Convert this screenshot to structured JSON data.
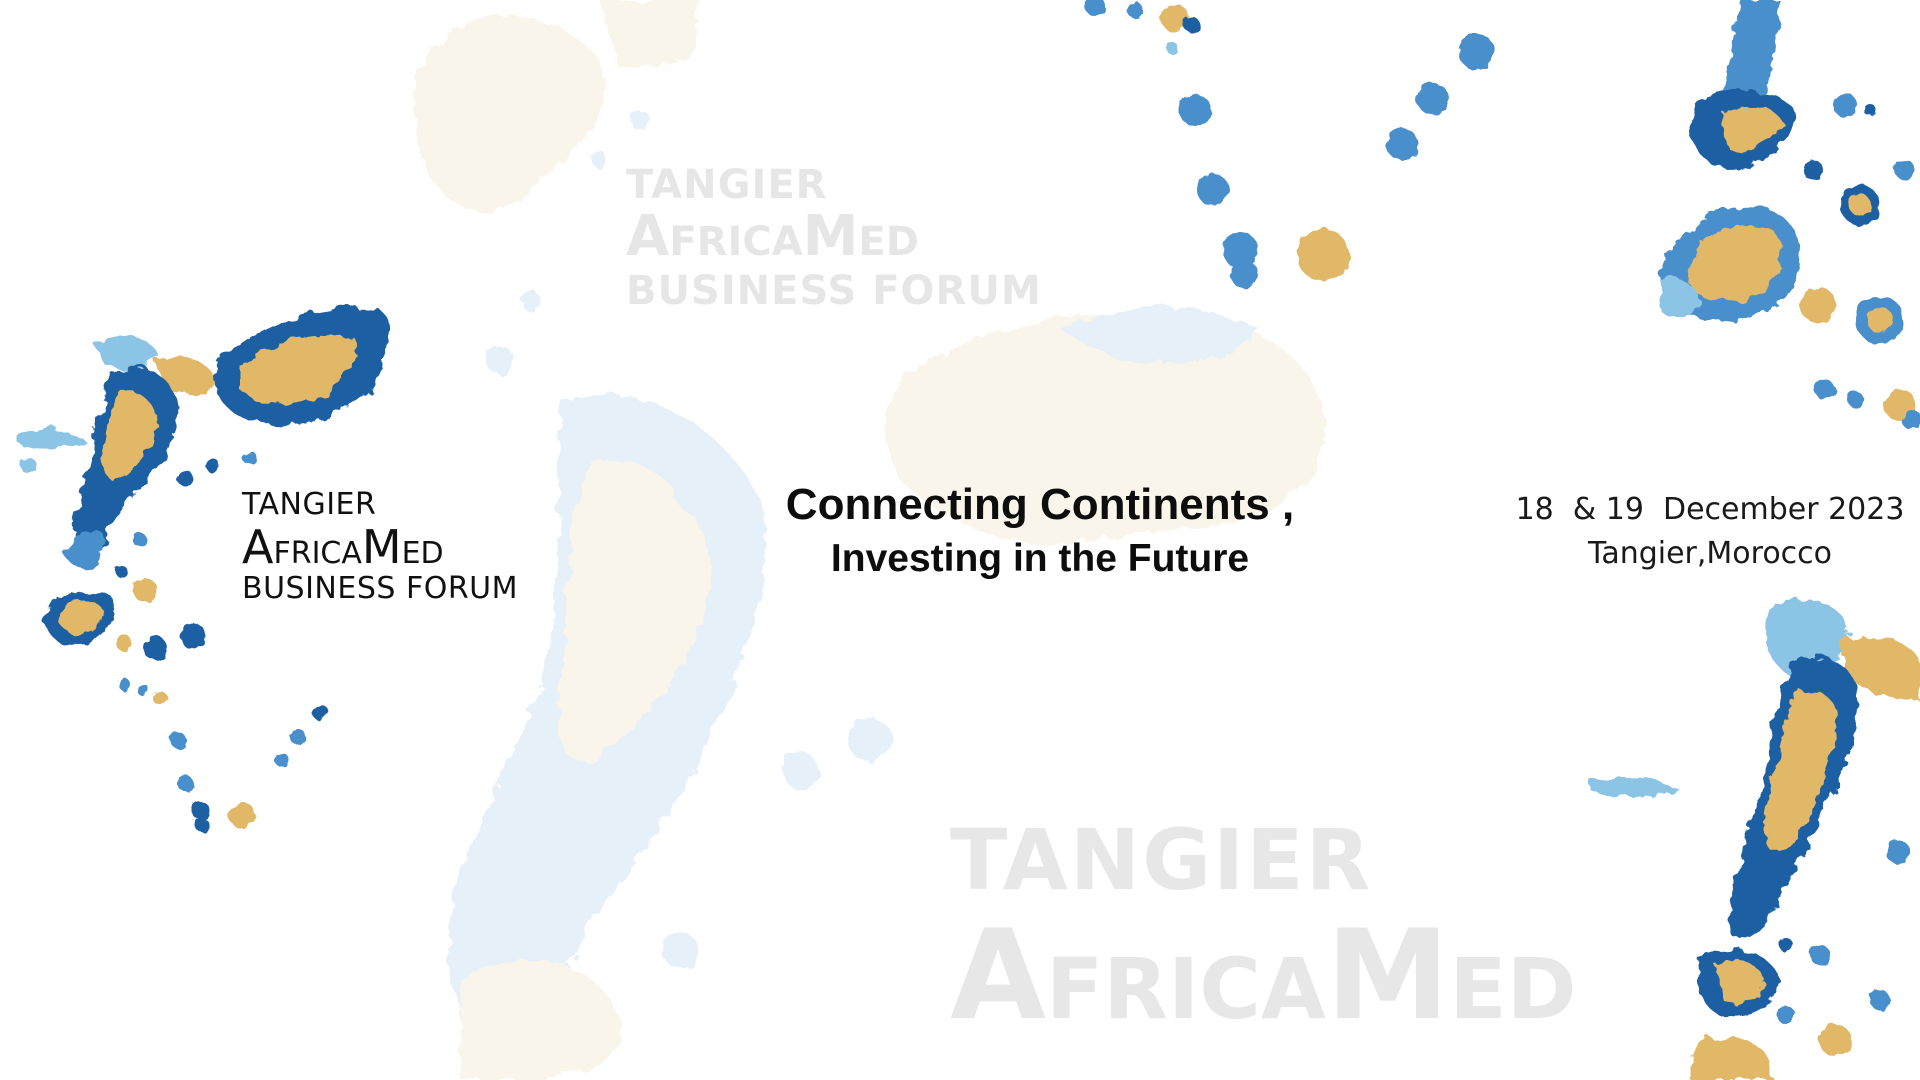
{
  "logo": {
    "line1": "TANGIER",
    "line2_cap1": "A",
    "line2_small1": "FRICA",
    "line2_cap2": "M",
    "line2_small2": "ED",
    "line3": "BUSINESS FORUM"
  },
  "watermark_top": {
    "line1": "TANGIER",
    "line2_cap1": "A",
    "line2_small1": "FRICA",
    "line2_cap2": "M",
    "line2_small2": "ED",
    "line3": "BUSINESS FORUM"
  },
  "watermark_bottom": {
    "line1": "TANGIER",
    "line2_cap1": "A",
    "line2_small1": "FRICA",
    "line2_cap2": "M",
    "line2_small2": "ED"
  },
  "tagline": {
    "line1": "Connecting Continents ,",
    "line2": "Investing in the Future"
  },
  "event": {
    "dates": "18  & 19  December 2023",
    "location": "Tangier,Morocco"
  },
  "colors": {
    "blue_dark": "#1f5fa3",
    "blue_mid": "#4a8fcc",
    "blue_light": "#8cc4e6",
    "gold": "#e0b868",
    "text": "#111111",
    "watermark": "#e6e6e6"
  }
}
